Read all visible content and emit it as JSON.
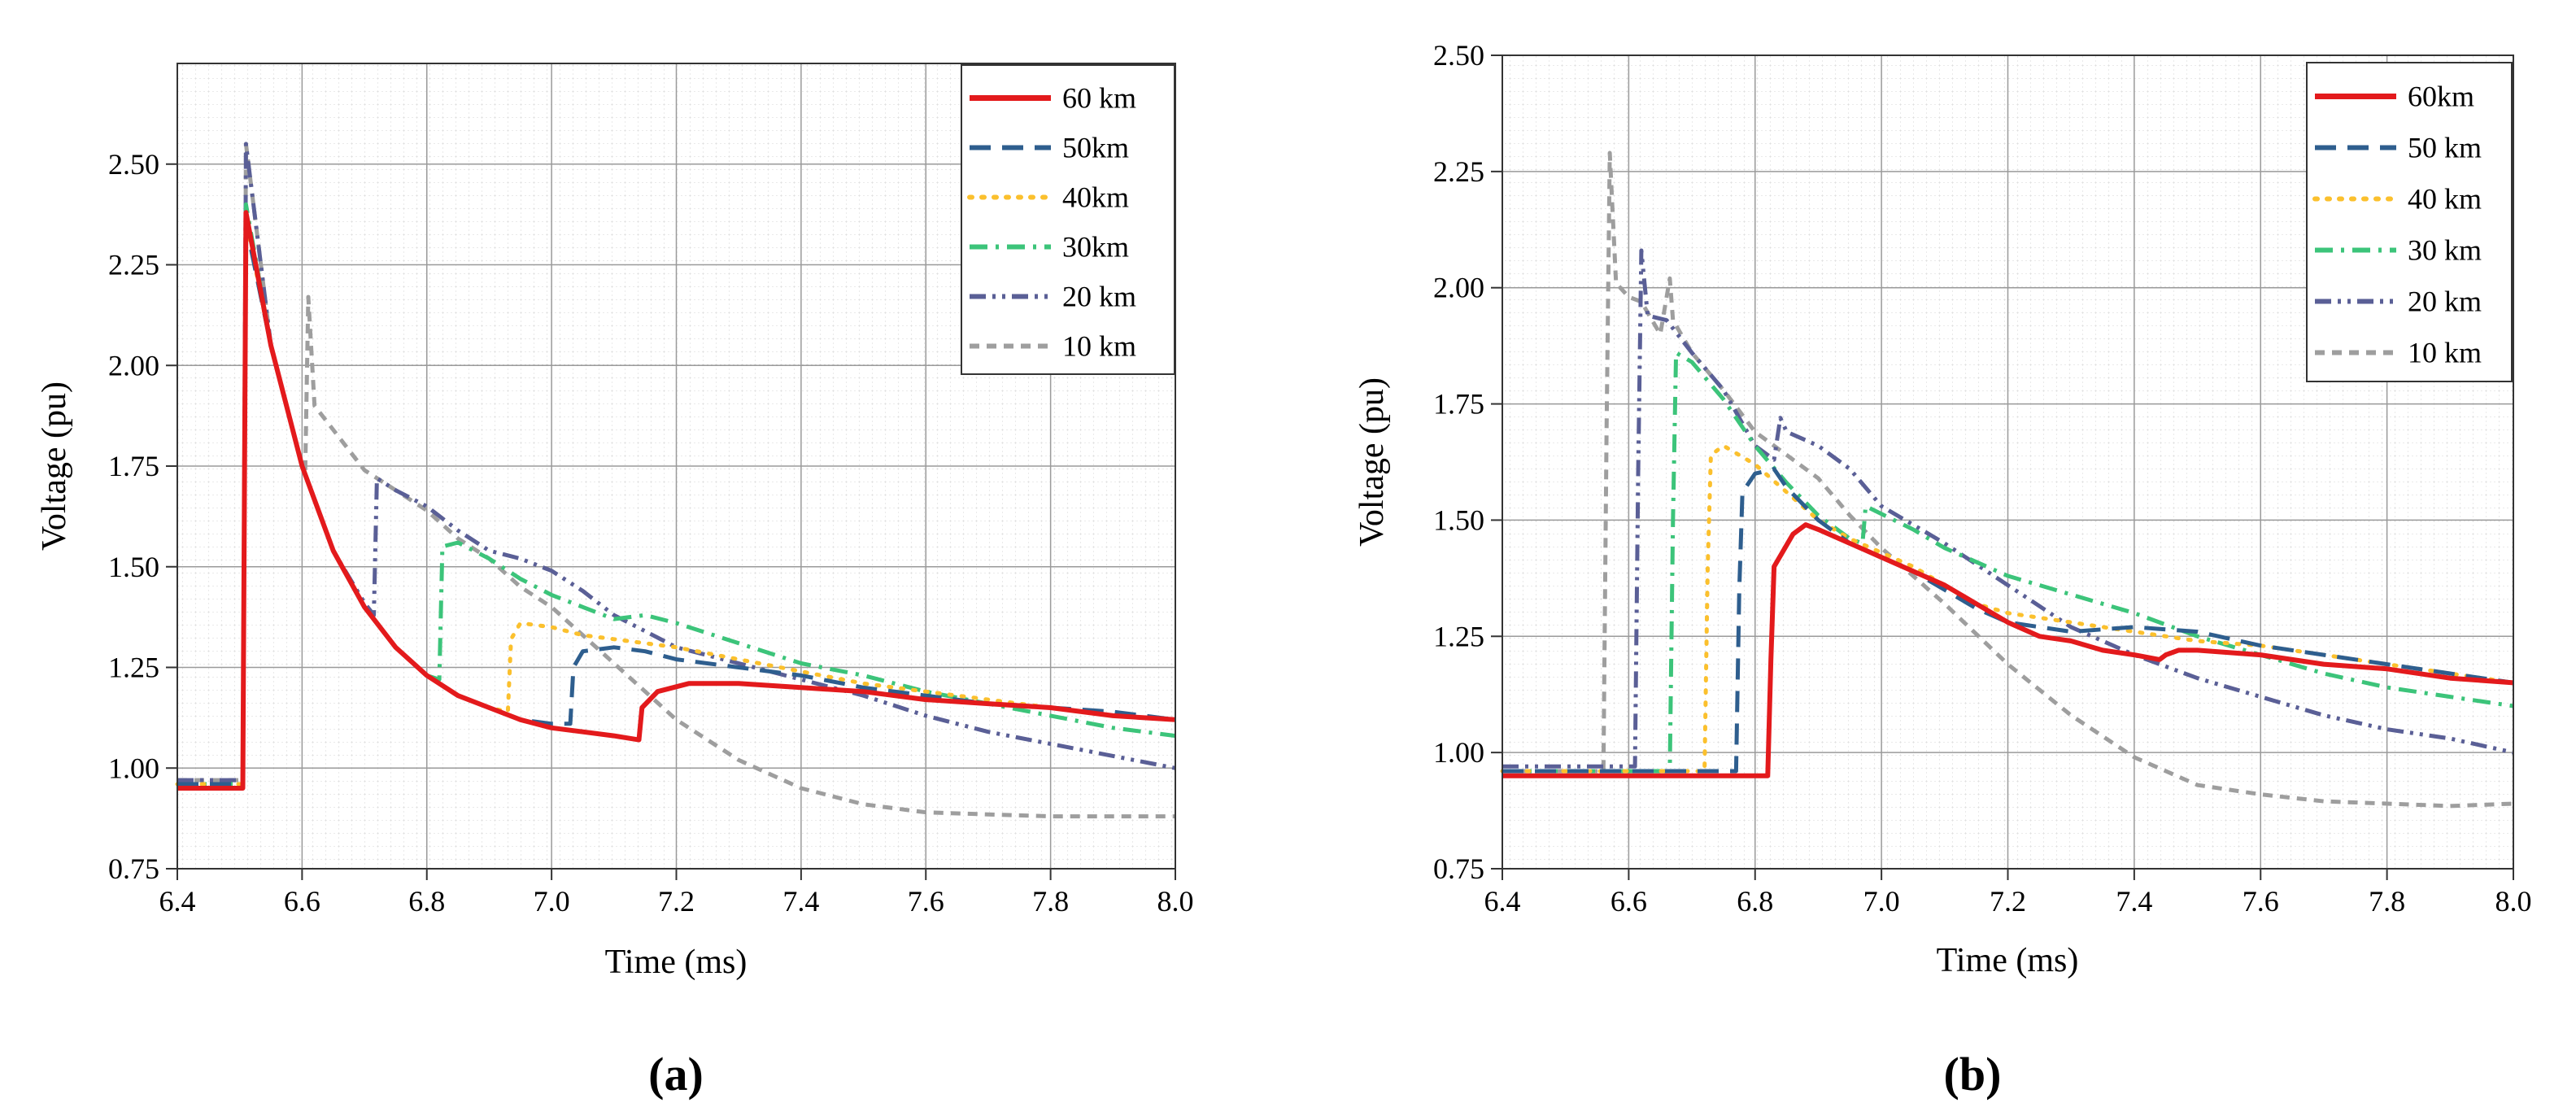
{
  "figure": {
    "panel_a_label": "(a)",
    "panel_b_label": "(b)"
  },
  "chart_data": [
    {
      "type": "line",
      "panel": "a",
      "xlabel": "Time (ms)",
      "ylabel": "Voltage (pu)",
      "xlim": [
        6.4,
        8.0
      ],
      "ylim": [
        0.75,
        2.75
      ],
      "xticks": [
        "6.4",
        "6.6",
        "6.8",
        "7.0",
        "7.2",
        "7.4",
        "7.6",
        "7.8",
        "8.0"
      ],
      "yticks": [
        "0.75",
        "1.00",
        "1.25",
        "1.50",
        "1.75",
        "2.00",
        "2.25",
        "2.50"
      ],
      "grid": true,
      "legend_position": "top-right",
      "series": [
        {
          "name": "60 km",
          "color": "#e31a1c",
          "dash": "solid",
          "x": [
            6.4,
            6.5,
            6.505,
            6.51,
            6.55,
            6.6,
            6.65,
            6.7,
            6.75,
            6.8,
            6.85,
            6.9,
            6.95,
            7.0,
            7.05,
            7.1,
            7.14,
            7.145,
            7.17,
            7.22,
            7.3,
            7.4,
            7.5,
            7.6,
            7.7,
            7.8,
            7.9,
            8.0
          ],
          "y": [
            0.95,
            0.95,
            0.95,
            2.38,
            2.05,
            1.75,
            1.54,
            1.4,
            1.3,
            1.23,
            1.18,
            1.15,
            1.12,
            1.1,
            1.09,
            1.08,
            1.07,
            1.15,
            1.19,
            1.21,
            1.21,
            1.2,
            1.19,
            1.17,
            1.16,
            1.15,
            1.13,
            1.12
          ]
        },
        {
          "name": "50km",
          "color": "#2e5e8e",
          "dash": "dashed",
          "x": [
            6.4,
            6.5,
            6.505,
            6.51,
            6.55,
            6.6,
            6.65,
            6.7,
            6.75,
            6.8,
            6.85,
            6.9,
            6.95,
            7.0,
            7.03,
            7.035,
            7.05,
            7.1,
            7.15,
            7.2,
            7.3,
            7.4,
            7.5,
            7.6,
            7.7,
            7.8,
            7.9,
            8.0
          ],
          "y": [
            0.96,
            0.96,
            0.96,
            2.35,
            2.05,
            1.75,
            1.54,
            1.4,
            1.3,
            1.23,
            1.18,
            1.15,
            1.12,
            1.11,
            1.11,
            1.25,
            1.29,
            1.3,
            1.29,
            1.27,
            1.25,
            1.23,
            1.2,
            1.18,
            1.16,
            1.15,
            1.14,
            1.12
          ]
        },
        {
          "name": "40km",
          "color": "#fbc02d",
          "dash": "dotted",
          "x": [
            6.4,
            6.5,
            6.505,
            6.51,
            6.55,
            6.6,
            6.65,
            6.7,
            6.75,
            6.8,
            6.85,
            6.9,
            6.93,
            6.935,
            6.95,
            7.0,
            7.05,
            7.1,
            7.2,
            7.3,
            7.4,
            7.5,
            7.6,
            7.7,
            7.8,
            7.9,
            8.0
          ],
          "y": [
            0.96,
            0.96,
            0.96,
            2.36,
            2.05,
            1.75,
            1.54,
            1.4,
            1.3,
            1.23,
            1.18,
            1.15,
            1.14,
            1.32,
            1.36,
            1.35,
            1.33,
            1.32,
            1.3,
            1.27,
            1.24,
            1.21,
            1.19,
            1.17,
            1.15,
            1.13,
            1.12
          ]
        },
        {
          "name": "30km",
          "color": "#3cc47a",
          "dash": "dashdot",
          "x": [
            6.4,
            6.5,
            6.505,
            6.51,
            6.55,
            6.6,
            6.65,
            6.7,
            6.75,
            6.8,
            6.82,
            6.825,
            6.85,
            6.9,
            6.95,
            7.0,
            7.05,
            7.1,
            7.15,
            7.2,
            7.3,
            7.4,
            7.5,
            7.6,
            7.7,
            7.8,
            7.9,
            8.0
          ],
          "y": [
            0.96,
            0.96,
            0.96,
            2.4,
            2.05,
            1.75,
            1.54,
            1.4,
            1.3,
            1.23,
            1.22,
            1.55,
            1.56,
            1.52,
            1.47,
            1.43,
            1.4,
            1.37,
            1.38,
            1.36,
            1.31,
            1.26,
            1.23,
            1.19,
            1.16,
            1.13,
            1.1,
            1.08
          ]
        },
        {
          "name": "20 km",
          "color": "#5a5f96",
          "dash": "dashdotdot",
          "x": [
            6.4,
            6.5,
            6.505,
            6.51,
            6.55,
            6.6,
            6.65,
            6.7,
            6.715,
            6.72,
            6.75,
            6.8,
            6.85,
            6.9,
            6.95,
            7.0,
            7.05,
            7.1,
            7.15,
            7.2,
            7.3,
            7.4,
            7.5,
            7.6,
            7.7,
            7.8,
            7.9,
            8.0
          ],
          "y": [
            0.97,
            0.97,
            0.97,
            2.55,
            2.05,
            1.75,
            1.54,
            1.41,
            1.38,
            1.72,
            1.69,
            1.65,
            1.59,
            1.54,
            1.52,
            1.49,
            1.44,
            1.38,
            1.34,
            1.3,
            1.26,
            1.22,
            1.18,
            1.13,
            1.09,
            1.06,
            1.03,
            1.0
          ]
        },
        {
          "name": "10 km",
          "color": "#9e9e9e",
          "dash": "shortdash",
          "x": [
            6.4,
            6.5,
            6.505,
            6.51,
            6.55,
            6.6,
            6.605,
            6.61,
            6.62,
            6.65,
            6.7,
            6.75,
            6.8,
            6.85,
            6.9,
            6.95,
            7.0,
            7.05,
            7.1,
            7.15,
            7.2,
            7.3,
            7.4,
            7.5,
            7.6,
            7.7,
            7.8,
            7.9,
            8.0
          ],
          "y": [
            0.97,
            0.97,
            0.97,
            2.55,
            2.05,
            1.75,
            1.73,
            2.17,
            1.9,
            1.84,
            1.74,
            1.69,
            1.64,
            1.57,
            1.52,
            1.45,
            1.4,
            1.33,
            1.26,
            1.19,
            1.12,
            1.02,
            0.95,
            0.91,
            0.89,
            0.885,
            0.88,
            0.88,
            0.88
          ]
        }
      ]
    },
    {
      "type": "line",
      "panel": "b",
      "xlabel": "Time (ms)",
      "ylabel": "Voltage (pu)",
      "xlim": [
        6.4,
        8.0
      ],
      "ylim": [
        0.75,
        2.5
      ],
      "xticks": [
        "6.4",
        "6.6",
        "6.8",
        "7.0",
        "7.2",
        "7.4",
        "7.6",
        "7.8",
        "8.0"
      ],
      "yticks": [
        "0.75",
        "1.00",
        "1.25",
        "1.50",
        "1.75",
        "2.00",
        "2.25",
        "2.50"
      ],
      "grid": true,
      "legend_position": "top-right",
      "series": [
        {
          "name": "60km",
          "color": "#e31a1c",
          "dash": "solid",
          "x": [
            6.4,
            6.82,
            6.825,
            6.83,
            6.86,
            6.88,
            6.9,
            6.95,
            7.0,
            7.05,
            7.1,
            7.15,
            7.2,
            7.25,
            7.3,
            7.35,
            7.4,
            7.44,
            7.45,
            7.47,
            7.5,
            7.6,
            7.7,
            7.8,
            7.9,
            8.0
          ],
          "y": [
            0.95,
            0.95,
            1.2,
            1.4,
            1.47,
            1.49,
            1.48,
            1.45,
            1.42,
            1.39,
            1.36,
            1.32,
            1.28,
            1.25,
            1.24,
            1.22,
            1.21,
            1.2,
            1.21,
            1.22,
            1.22,
            1.21,
            1.19,
            1.18,
            1.16,
            1.15
          ]
        },
        {
          "name": "50 km",
          "color": "#2e5e8e",
          "dash": "dashed",
          "x": [
            6.4,
            6.77,
            6.775,
            6.78,
            6.8,
            6.83,
            6.85,
            6.9,
            6.95,
            7.0,
            7.05,
            7.1,
            7.15,
            7.2,
            7.3,
            7.4,
            7.5,
            7.6,
            7.7,
            7.8,
            7.9,
            8.0
          ],
          "y": [
            0.96,
            0.96,
            1.35,
            1.56,
            1.6,
            1.61,
            1.57,
            1.5,
            1.45,
            1.42,
            1.39,
            1.35,
            1.31,
            1.28,
            1.26,
            1.27,
            1.26,
            1.23,
            1.21,
            1.19,
            1.17,
            1.15
          ]
        },
        {
          "name": "40 km",
          "color": "#fbc02d",
          "dash": "dotted",
          "x": [
            6.4,
            6.72,
            6.725,
            6.73,
            6.75,
            6.8,
            6.85,
            6.9,
            6.95,
            7.0,
            7.05,
            7.1,
            7.15,
            7.2,
            7.3,
            7.4,
            7.5,
            7.6,
            7.7,
            7.8,
            7.9,
            8.0
          ],
          "y": [
            0.96,
            0.96,
            1.4,
            1.64,
            1.66,
            1.62,
            1.56,
            1.5,
            1.46,
            1.43,
            1.4,
            1.36,
            1.32,
            1.3,
            1.28,
            1.26,
            1.24,
            1.23,
            1.21,
            1.19,
            1.17,
            1.15
          ]
        },
        {
          "name": "30 km",
          "color": "#3cc47a",
          "dash": "dashdot",
          "x": [
            6.4,
            6.665,
            6.67,
            6.675,
            6.7,
            6.75,
            6.8,
            6.85,
            6.9,
            6.95,
            6.97,
            6.975,
            6.99,
            7.05,
            7.1,
            7.2,
            7.3,
            7.4,
            7.5,
            7.6,
            7.7,
            7.8,
            7.9,
            8.0
          ],
          "y": [
            0.96,
            0.96,
            1.5,
            1.86,
            1.84,
            1.76,
            1.66,
            1.58,
            1.51,
            1.46,
            1.45,
            1.53,
            1.52,
            1.48,
            1.44,
            1.38,
            1.34,
            1.3,
            1.25,
            1.21,
            1.17,
            1.14,
            1.12,
            1.1
          ]
        },
        {
          "name": "20 km",
          "color": "#5a5f96",
          "dash": "dashdotdot",
          "x": [
            6.4,
            6.61,
            6.615,
            6.62,
            6.63,
            6.66,
            6.7,
            6.75,
            6.8,
            6.83,
            6.84,
            6.85,
            6.9,
            6.95,
            7.0,
            7.05,
            7.1,
            7.2,
            7.3,
            7.4,
            7.5,
            7.6,
            7.7,
            7.8,
            7.9,
            8.0
          ],
          "y": [
            0.97,
            0.97,
            1.6,
            2.08,
            1.94,
            1.93,
            1.86,
            1.78,
            1.66,
            1.63,
            1.72,
            1.69,
            1.66,
            1.61,
            1.53,
            1.49,
            1.45,
            1.36,
            1.27,
            1.21,
            1.16,
            1.12,
            1.08,
            1.05,
            1.03,
            1.0
          ]
        },
        {
          "name": "10 km",
          "color": "#9e9e9e",
          "dash": "shortdash",
          "x": [
            6.4,
            6.56,
            6.565,
            6.57,
            6.58,
            6.6,
            6.62,
            6.65,
            6.665,
            6.67,
            6.7,
            6.75,
            6.8,
            6.85,
            6.9,
            6.95,
            7.0,
            7.05,
            7.1,
            7.2,
            7.3,
            7.4,
            7.5,
            7.6,
            7.7,
            7.8,
            7.9,
            8.0
          ],
          "y": [
            0.96,
            0.96,
            1.7,
            2.29,
            2.01,
            1.98,
            1.97,
            1.9,
            2.02,
            1.93,
            1.86,
            1.78,
            1.69,
            1.64,
            1.59,
            1.51,
            1.44,
            1.38,
            1.32,
            1.19,
            1.08,
            0.99,
            0.93,
            0.91,
            0.895,
            0.89,
            0.885,
            0.89
          ]
        }
      ]
    }
  ]
}
